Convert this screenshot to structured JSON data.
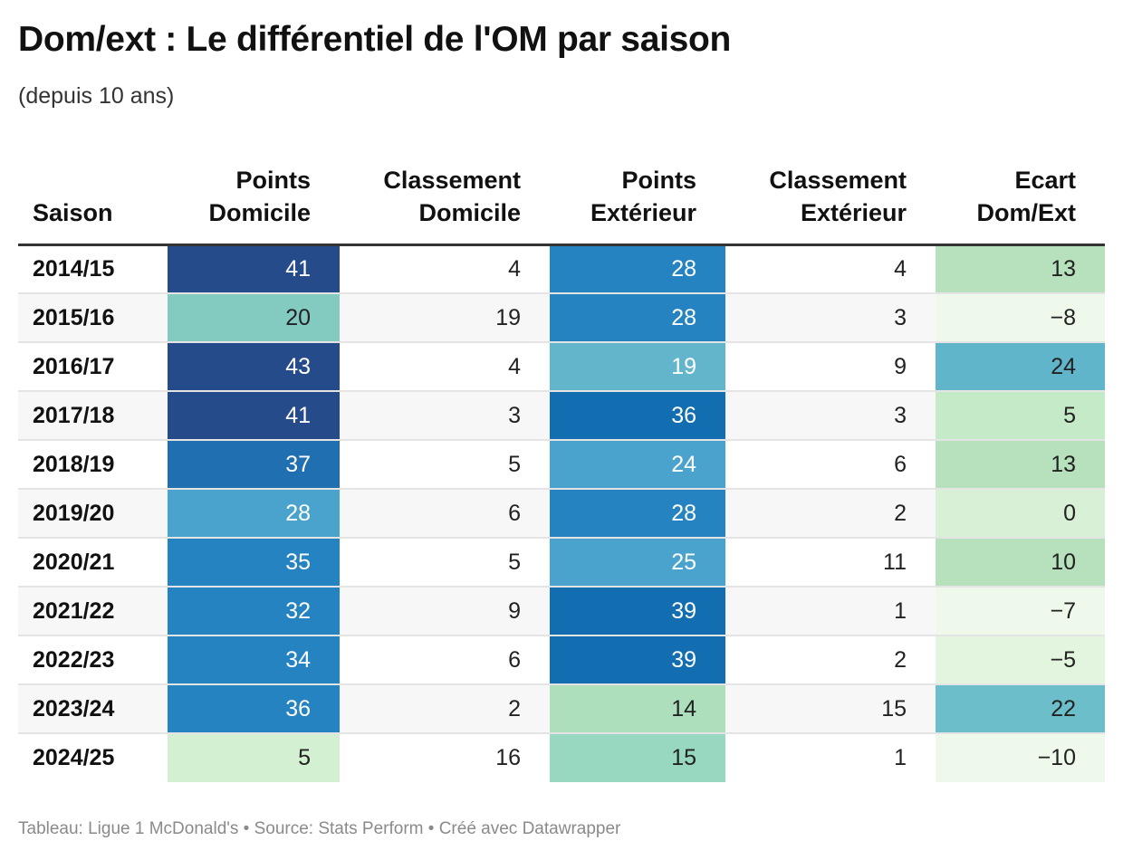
{
  "header": {
    "title": "Dom/ext : Le différentiel de l'OM par saison",
    "subtitle": "(depuis 10 ans)"
  },
  "footer": {
    "credit": "Tableau: Ligue 1 McDonald's • Source: Stats Perform • Créé avec Datawrapper"
  },
  "chart_data": {
    "type": "table",
    "title": "Dom/ext : Le différentiel de l'OM par saison",
    "subtitle": "(depuis 10 ans)",
    "columns": [
      {
        "key": "saison",
        "line1": "",
        "line2": "Saison"
      },
      {
        "key": "pts_dom",
        "line1": "Points",
        "line2": "Domicile"
      },
      {
        "key": "cl_dom",
        "line1": "Classement",
        "line2": "Domicile"
      },
      {
        "key": "pts_ext",
        "line1": "Points",
        "line2": "Extérieur"
      },
      {
        "key": "cl_ext",
        "line1": "Classement",
        "line2": "Extérieur"
      },
      {
        "key": "ecart",
        "line1": "Ecart",
        "line2": "Dom/Ext"
      }
    ],
    "rows": [
      {
        "saison": "2014/15",
        "pts_dom": 41,
        "cl_dom": 4,
        "pts_ext": 28,
        "cl_ext": 4,
        "ecart": "13"
      },
      {
        "saison": "2015/16",
        "pts_dom": 20,
        "cl_dom": 19,
        "pts_ext": 28,
        "cl_ext": 3,
        "ecart": "−8"
      },
      {
        "saison": "2016/17",
        "pts_dom": 43,
        "cl_dom": 4,
        "pts_ext": 19,
        "cl_ext": 9,
        "ecart": "24"
      },
      {
        "saison": "2017/18",
        "pts_dom": 41,
        "cl_dom": 3,
        "pts_ext": 36,
        "cl_ext": 3,
        "ecart": "5"
      },
      {
        "saison": "2018/19",
        "pts_dom": 37,
        "cl_dom": 5,
        "pts_ext": 24,
        "cl_ext": 6,
        "ecart": "13"
      },
      {
        "saison": "2019/20",
        "pts_dom": 28,
        "cl_dom": 6,
        "pts_ext": 28,
        "cl_ext": 2,
        "ecart": "0"
      },
      {
        "saison": "2020/21",
        "pts_dom": 35,
        "cl_dom": 5,
        "pts_ext": 25,
        "cl_ext": 11,
        "ecart": "10"
      },
      {
        "saison": "2021/22",
        "pts_dom": 32,
        "cl_dom": 9,
        "pts_ext": 39,
        "cl_ext": 1,
        "ecart": "−7"
      },
      {
        "saison": "2022/23",
        "pts_dom": 34,
        "cl_dom": 6,
        "pts_ext": 39,
        "cl_ext": 2,
        "ecart": "−5"
      },
      {
        "saison": "2023/24",
        "pts_dom": 36,
        "cl_dom": 2,
        "pts_ext": 14,
        "cl_ext": 15,
        "ecart": "22"
      },
      {
        "saison": "2024/25",
        "pts_dom": 5,
        "cl_dom": 16,
        "pts_ext": 15,
        "cl_ext": 1,
        "ecart": "−10"
      }
    ],
    "heatmap_columns": [
      "pts_dom",
      "pts_ext",
      "ecart"
    ],
    "colors": {
      "pts_dom": [
        "#d3f0d3",
        "#83cbc1",
        "#4aa3cc",
        "#2683c1",
        "#1f6fb1",
        "#264b8a"
      ],
      "pts_dom_thresholds": [
        10,
        25,
        31,
        36,
        40,
        42
      ],
      "pts_ext": [
        "#aedfbd",
        "#98d8c0",
        "#62b5ca",
        "#4aa3cc",
        "#2683c1",
        "#126eb0"
      ],
      "pts_ext_thresholds": [
        14.5,
        17,
        23,
        26.5,
        33,
        37.5
      ],
      "ecart": [
        "#eef8eb",
        "#e3f5de",
        "#d8f0d5",
        "#c5eac8",
        "#b6e1bc",
        "#6cbfca",
        "#61b5cb"
      ],
      "ecart_thresholds": [
        -6,
        -1,
        3,
        8,
        18,
        23,
        100
      ],
      "light_text": "#ffffff",
      "dark_text": "#222222"
    }
  }
}
